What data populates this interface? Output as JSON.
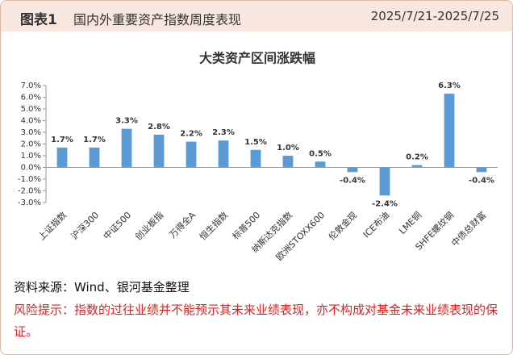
{
  "header": {
    "label": "图表1",
    "title": "国内外重要资产指数周度表现",
    "date": "2025/7/21-2025/7/25"
  },
  "chart_data": {
    "type": "bar",
    "title": "大类资产区间涨跌幅",
    "categories": [
      "上证指数",
      "沪深300",
      "中证500",
      "创业板指",
      "万得全A",
      "恒生指数",
      "标普500",
      "纳斯达克指数",
      "欧洲STOXX600",
      "伦敦金现",
      "ICE布油",
      "LME铜",
      "SHFE螺纹钢",
      "中债总财富"
    ],
    "values": [
      1.7,
      1.7,
      3.3,
      2.8,
      2.2,
      2.3,
      1.5,
      1.0,
      0.5,
      -0.4,
      -2.4,
      0.2,
      6.3,
      -0.4
    ],
    "value_labels": [
      "1.7%",
      "1.7%",
      "3.3%",
      "2.8%",
      "2.2%",
      "2.3%",
      "1.5%",
      "1.0%",
      "0.5%",
      "-0.4%",
      "-2.4%",
      "0.2%",
      "6.3%",
      "-0.4%"
    ],
    "color": "#5b9bd5",
    "ylim": [
      -3.0,
      7.0
    ],
    "yticks": [
      {
        "value": -3.0,
        "label": "-3.0%"
      },
      {
        "value": -2.0,
        "label": "-2.0%"
      },
      {
        "value": -1.0,
        "label": "-1.0%"
      },
      {
        "value": 0.0,
        "label": "0.0%"
      },
      {
        "value": 1.0,
        "label": "1.0%"
      },
      {
        "value": 2.0,
        "label": "2.0%"
      },
      {
        "value": 3.0,
        "label": "3.0%"
      },
      {
        "value": 4.0,
        "label": "4.0%"
      },
      {
        "value": 5.0,
        "label": "5.0%"
      },
      {
        "value": 6.0,
        "label": "6.0%"
      },
      {
        "value": 7.0,
        "label": "7.0%"
      }
    ],
    "grid": false
  },
  "footer": {
    "source": "资料来源：Wind、银河基金整理",
    "risk": "风险提示：指数的过往业绩并不能预示其未来业绩表现，亦不构成对基金未来业绩表现的保证。"
  }
}
